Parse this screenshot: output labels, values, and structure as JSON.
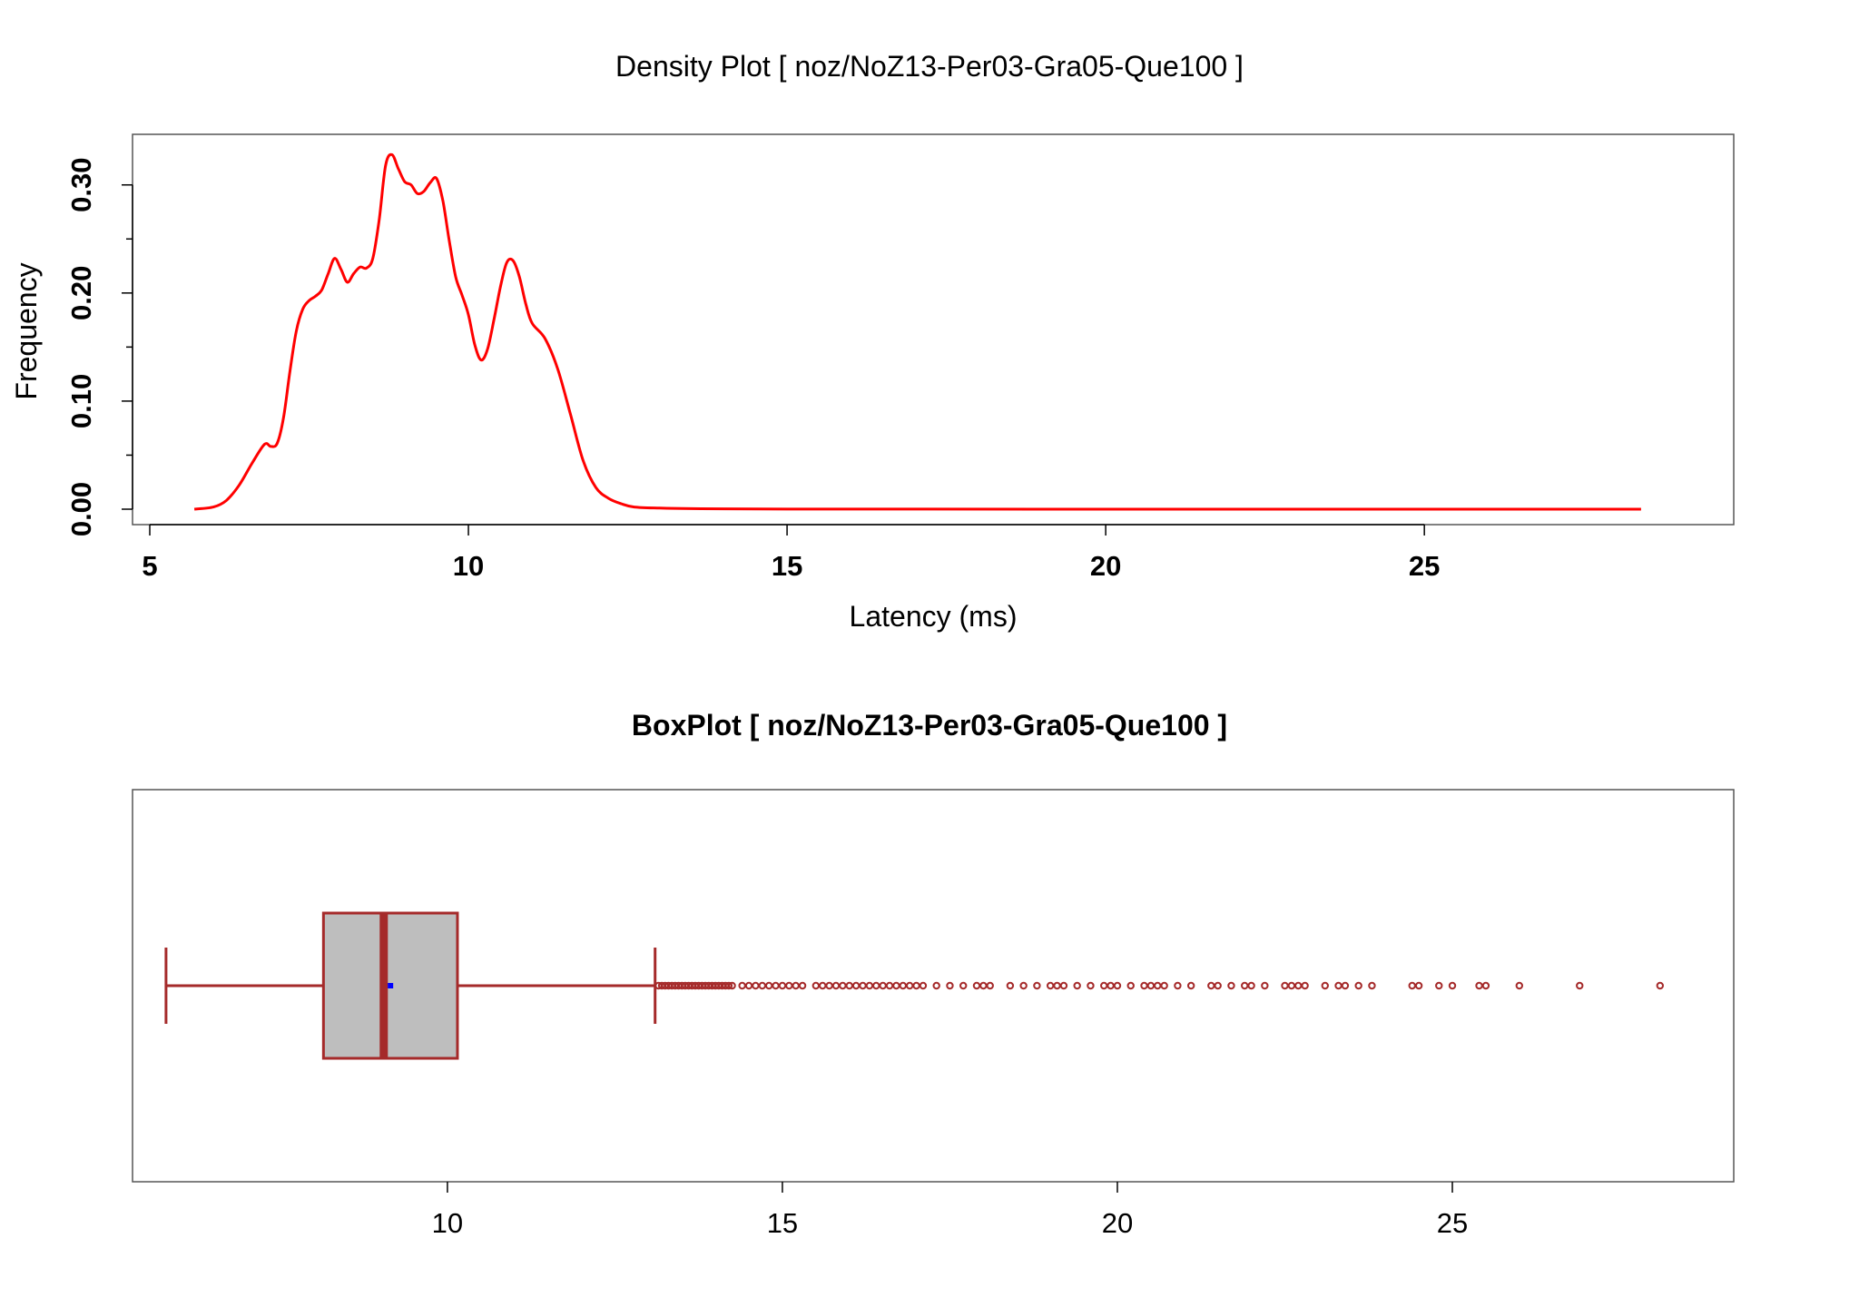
{
  "chart_data": [
    {
      "type": "line",
      "title": "Density Plot [ noz/NoZ13-Per03-Gra05-Que100 ]",
      "xlabel": "Latency (ms)",
      "ylabel": "Frequency",
      "xlim": [
        5,
        29
      ],
      "ylim": [
        0,
        0.33
      ],
      "x_ticks": [
        5,
        10,
        15,
        20,
        25
      ],
      "y_ticks": [
        0.0,
        0.1,
        0.2,
        0.3
      ],
      "x_tick_labels": [
        "5",
        "10",
        "15",
        "20",
        "25"
      ],
      "y_tick_labels": [
        "0.00",
        "0.10",
        "0.20",
        "0.30"
      ],
      "line_color": "#ff0000",
      "series": [
        {
          "x": [
            5.7,
            6.0,
            6.2,
            6.4,
            6.6,
            6.8,
            6.9,
            7.0,
            7.1,
            7.2,
            7.3,
            7.4,
            7.5,
            7.6,
            7.7,
            7.8,
            7.9,
            8.0,
            8.1,
            8.2,
            8.3,
            8.4,
            8.5,
            8.6,
            8.7,
            8.8,
            8.9,
            9.0,
            9.1,
            9.2,
            9.3,
            9.4,
            9.5,
            9.6,
            9.7,
            9.8,
            9.9,
            10.0,
            10.1,
            10.2,
            10.3,
            10.4,
            10.5,
            10.6,
            10.7,
            10.8,
            10.9,
            11.0,
            11.2,
            11.4,
            11.6,
            11.8,
            12.0,
            12.2,
            12.4,
            12.6,
            13.0,
            13.5,
            14.0,
            15.0,
            17.0,
            20.0,
            23.0,
            26.0,
            28.4
          ],
          "y": [
            0.0,
            0.002,
            0.008,
            0.022,
            0.042,
            0.06,
            0.058,
            0.061,
            0.085,
            0.128,
            0.165,
            0.185,
            0.193,
            0.197,
            0.203,
            0.218,
            0.232,
            0.222,
            0.21,
            0.218,
            0.224,
            0.223,
            0.232,
            0.268,
            0.318,
            0.328,
            0.315,
            0.303,
            0.3,
            0.292,
            0.294,
            0.302,
            0.306,
            0.285,
            0.248,
            0.215,
            0.198,
            0.18,
            0.152,
            0.138,
            0.148,
            0.175,
            0.205,
            0.228,
            0.23,
            0.215,
            0.19,
            0.172,
            0.158,
            0.13,
            0.088,
            0.045,
            0.02,
            0.01,
            0.005,
            0.002,
            0.001,
            0.0005,
            0.0003,
            0.0001,
            0.0001,
            0.0,
            0.0,
            0.0,
            0.0
          ]
        }
      ]
    },
    {
      "type": "box",
      "title": "BoxPlot [ noz/NoZ13-Per03-Gra05-Que100 ]",
      "xlim": [
        5.3,
        29.2
      ],
      "x_ticks": [
        10,
        15,
        20,
        25
      ],
      "x_tick_labels": [
        "10",
        "15",
        "20",
        "25"
      ],
      "box_color": "#a52a2a",
      "box_fill": "#bebebe",
      "mean_color": "#0000ff",
      "stats": {
        "whisker_low": 5.8,
        "q1": 8.15,
        "median": 9.05,
        "mean": 9.15,
        "q3": 10.15,
        "whisker_high": 13.1
      },
      "outliers": [
        13.15,
        13.2,
        13.25,
        13.3,
        13.35,
        13.4,
        13.45,
        13.5,
        13.55,
        13.6,
        13.65,
        13.7,
        13.75,
        13.8,
        13.85,
        13.9,
        13.95,
        14.0,
        14.05,
        14.1,
        14.15,
        14.2,
        14.25,
        14.4,
        14.5,
        14.6,
        14.7,
        14.8,
        14.9,
        15.0,
        15.1,
        15.2,
        15.3,
        15.5,
        15.6,
        15.7,
        15.8,
        15.9,
        16.0,
        16.1,
        16.2,
        16.3,
        16.4,
        16.5,
        16.6,
        16.7,
        16.8,
        16.9,
        17.0,
        17.1,
        17.3,
        17.5,
        17.7,
        17.9,
        18.0,
        18.1,
        18.4,
        18.6,
        18.8,
        19.0,
        19.1,
        19.2,
        19.4,
        19.6,
        19.8,
        19.9,
        20.0,
        20.2,
        20.4,
        20.5,
        20.6,
        20.7,
        20.9,
        21.1,
        21.4,
        21.5,
        21.7,
        21.9,
        22.0,
        22.2,
        22.5,
        22.6,
        22.7,
        22.8,
        23.1,
        23.3,
        23.4,
        23.6,
        23.8,
        24.4,
        24.5,
        24.8,
        25.0,
        25.4,
        25.5,
        26.0,
        26.9,
        28.1
      ]
    }
  ]
}
